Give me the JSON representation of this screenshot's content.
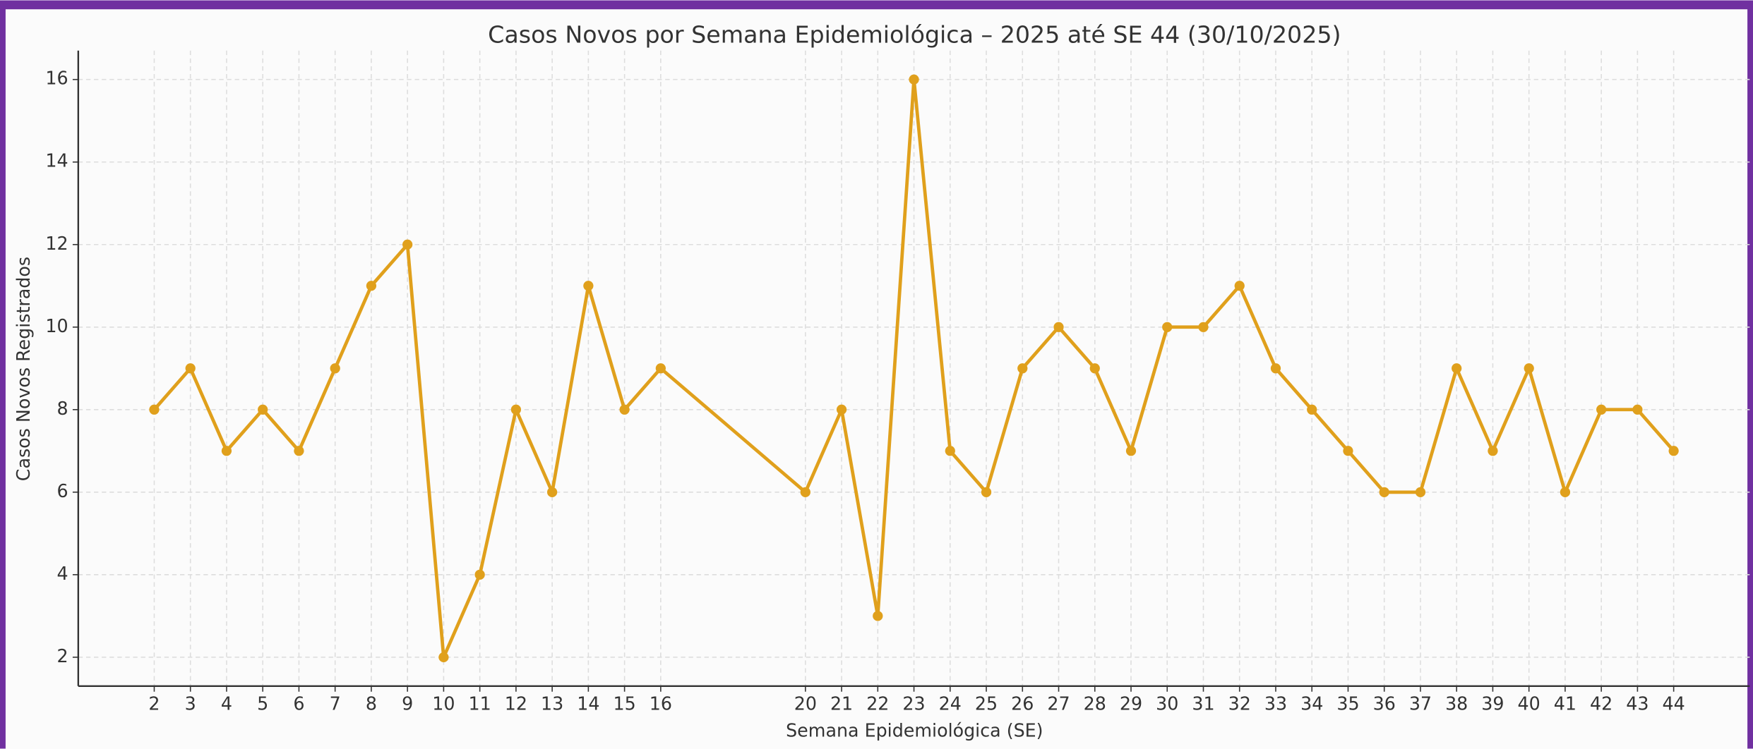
{
  "chart_data": {
    "type": "line",
    "title": "Casos Novos por Semana Epidemiológica – 2025 até SE 44 (30/10/2025)",
    "x_label": "Semana Epidemiológica (SE)",
    "y_label": "Casos Novos Registrados",
    "x": [
      2,
      3,
      4,
      5,
      6,
      7,
      8,
      9,
      10,
      11,
      12,
      13,
      14,
      15,
      16,
      20,
      21,
      22,
      23,
      24,
      25,
      26,
      27,
      28,
      29,
      30,
      31,
      32,
      33,
      34,
      35,
      36,
      37,
      38,
      39,
      40,
      41,
      42,
      43,
      44
    ],
    "series": [
      {
        "name": "Casos Novos",
        "color": "#e0a01c",
        "values": [
          8,
          9,
          7,
          8,
          7,
          9,
          11,
          12,
          2,
          4,
          8,
          6,
          11,
          8,
          9,
          6,
          8,
          3,
          16,
          7,
          6,
          9,
          10,
          9,
          7,
          10,
          10,
          11,
          9,
          8,
          7,
          6,
          6,
          9,
          7,
          9,
          6,
          8,
          8,
          7
        ]
      }
    ],
    "xlim": [
      -0.1,
      46.1
    ],
    "xticks": [
      2,
      3,
      4,
      5,
      6,
      7,
      8,
      9,
      10,
      11,
      12,
      13,
      14,
      15,
      16,
      20,
      21,
      22,
      23,
      24,
      25,
      26,
      27,
      28,
      29,
      30,
      31,
      32,
      33,
      34,
      35,
      36,
      37,
      38,
      39,
      40,
      41,
      42,
      43,
      44
    ],
    "ylim": [
      1.3,
      16.7
    ],
    "yticks": [
      2,
      4,
      6,
      8,
      10,
      12,
      14,
      16
    ],
    "grid": true
  }
}
